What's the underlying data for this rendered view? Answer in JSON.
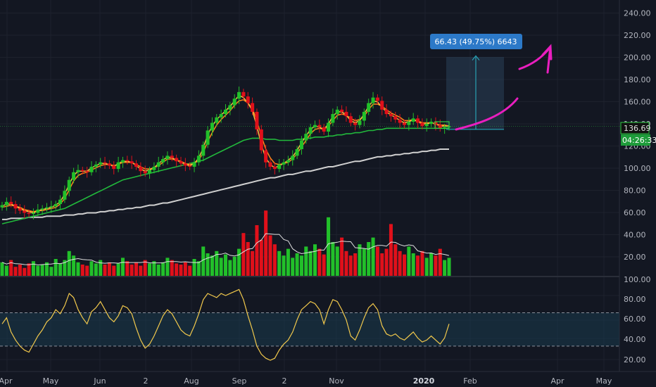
{
  "colors": {
    "background": "#131722",
    "grid": "#1e222d",
    "candle_up": "#26a69a",
    "candle_down": "#ef5350",
    "volume_up": "#22c02a",
    "volume_down": "#e0101a",
    "ema_fast": "#f6c244",
    "ema_slow": "#ff8a1a",
    "sma_mid": "#22b93c",
    "sma_long": "#d0d0d0",
    "rsi_line": "#f2c94c",
    "rsi_band": "#1a3a4d",
    "measure_box": "#2a3f58",
    "measure_label": "#2c79c8",
    "arrow": "#e91ebf",
    "price_tag": "#1e9b3a"
  },
  "chart_data": {
    "type": "candlestick",
    "price_axis": {
      "ticks": [
        "240.00",
        "220.00",
        "200.00",
        "180.00",
        "160.00",
        "140.00",
        "120.00",
        "100.00",
        "80.00",
        "60.00",
        "40.00",
        "20.00"
      ],
      "ylim": [
        0,
        240
      ]
    },
    "rsi_axis": {
      "ticks": [
        "100.00",
        "80.00",
        "60.00",
        "40.00",
        "20.00"
      ],
      "ylim": [
        14,
        100
      ],
      "band": [
        34,
        67
      ]
    },
    "time_axis": [
      "Apr",
      "May",
      "Jun",
      "2",
      "Aug",
      "Sep",
      "2",
      "Nov",
      "2020",
      "Feb",
      "Apr",
      "May"
    ],
    "current_price_label": "136.69",
    "countdown_label": "04:26:33",
    "measure_label": "66.43 (49.75%) 6643",
    "close": [
      65,
      68,
      66,
      62,
      60,
      58,
      57,
      58,
      61,
      62,
      63,
      64,
      66,
      70,
      78,
      88,
      95,
      97,
      96,
      95,
      100,
      102,
      104,
      103,
      101,
      98,
      104,
      106,
      105,
      103,
      100,
      96,
      94,
      97,
      100,
      104,
      107,
      110,
      108,
      105,
      103,
      101,
      100,
      104,
      110,
      120,
      133,
      140,
      145,
      148,
      152,
      156,
      162,
      168,
      164,
      158,
      150,
      134,
      115,
      104,
      100,
      98,
      102,
      104,
      106,
      110,
      116,
      124,
      130,
      136,
      138,
      136,
      132,
      140,
      148,
      152,
      150,
      146,
      140,
      138,
      142,
      150,
      158,
      163,
      160,
      152,
      148,
      146,
      143,
      140,
      138,
      141,
      144,
      140,
      137,
      139,
      141,
      138,
      135,
      136,
      137
    ],
    "ema_fast": [
      64,
      66,
      66,
      64,
      62,
      60,
      59,
      58,
      60,
      61,
      62,
      63,
      65,
      68,
      75,
      84,
      92,
      96,
      96,
      96,
      99,
      101,
      103,
      103,
      102,
      100,
      103,
      105,
      105,
      104,
      101,
      98,
      96,
      97,
      99,
      103,
      106,
      109,
      108,
      106,
      104,
      102,
      101,
      103,
      108,
      117,
      129,
      137,
      143,
      147,
      151,
      155,
      160,
      165,
      163,
      158,
      151,
      137,
      120,
      108,
      102,
      99,
      101,
      103,
      106,
      109,
      115,
      122,
      128,
      134,
      137,
      136,
      134,
      139,
      146,
      150,
      150,
      147,
      142,
      140,
      142,
      148,
      155,
      160,
      159,
      154,
      150,
      147,
      145,
      142,
      140,
      141,
      143,
      141,
      139,
      139,
      140,
      139,
      137,
      137,
      137
    ],
    "ema_slow": [
      63,
      64,
      65,
      64,
      63,
      61,
      60,
      59,
      60,
      60,
      61,
      62,
      63,
      66,
      71,
      79,
      87,
      92,
      94,
      95,
      97,
      99,
      101,
      102,
      102,
      101,
      102,
      104,
      104,
      104,
      102,
      100,
      98,
      98,
      99,
      101,
      104,
      107,
      107,
      106,
      105,
      103,
      102,
      103,
      106,
      113,
      123,
      131,
      138,
      143,
      147,
      151,
      156,
      160,
      161,
      158,
      153,
      142,
      128,
      116,
      108,
      103,
      102,
      103,
      104,
      107,
      112,
      118,
      124,
      130,
      134,
      135,
      134,
      137,
      142,
      147,
      148,
      147,
      144,
      142,
      143,
      146,
      152,
      157,
      157,
      155,
      152,
      149,
      147,
      145,
      142,
      142,
      143,
      142,
      140,
      140,
      140,
      139,
      138,
      138,
      137
    ],
    "sma_mid": [
      48,
      49,
      50,
      51,
      52,
      53,
      54,
      55,
      56,
      57,
      58,
      59,
      60,
      61,
      62,
      64,
      66,
      68,
      70,
      72,
      74,
      76,
      78,
      80,
      82,
      84,
      86,
      88,
      89,
      90,
      91,
      92,
      93,
      94,
      95,
      96,
      97,
      98,
      99,
      100,
      101,
      102,
      103,
      104,
      105,
      106,
      108,
      110,
      112,
      114,
      116,
      118,
      120,
      122,
      124,
      125,
      126,
      126,
      126,
      125,
      125,
      125,
      124,
      124,
      124,
      124,
      125,
      125,
      126,
      126,
      127,
      127,
      127,
      128,
      128,
      129,
      129,
      130,
      130,
      131,
      131,
      132,
      133,
      133,
      134,
      134,
      135,
      135,
      135,
      135,
      135,
      135,
      135,
      135,
      135,
      135,
      135,
      135,
      135,
      135,
      135
    ],
    "sma_long": [
      52,
      52,
      53,
      53,
      53,
      53,
      54,
      54,
      54,
      54,
      55,
      55,
      55,
      55,
      56,
      56,
      56,
      57,
      57,
      58,
      58,
      58,
      59,
      59,
      60,
      60,
      61,
      61,
      62,
      62,
      63,
      63,
      64,
      65,
      65,
      66,
      67,
      67,
      68,
      69,
      70,
      71,
      72,
      73,
      74,
      75,
      76,
      77,
      78,
      79,
      80,
      81,
      82,
      83,
      84,
      85,
      86,
      87,
      88,
      89,
      90,
      90,
      91,
      92,
      93,
      93,
      94,
      95,
      96,
      96,
      97,
      98,
      99,
      100,
      100,
      101,
      102,
      103,
      104,
      105,
      105,
      106,
      107,
      108,
      109,
      109,
      110,
      110,
      111,
      111,
      112,
      112,
      113,
      113,
      114,
      114,
      115,
      115,
      116,
      116,
      116
    ],
    "volume": [
      12,
      9,
      14,
      8,
      10,
      7,
      11,
      13,
      9,
      10,
      12,
      8,
      15,
      11,
      14,
      22,
      18,
      12,
      10,
      9,
      13,
      11,
      14,
      10,
      12,
      9,
      11,
      16,
      13,
      10,
      12,
      9,
      14,
      11,
      13,
      10,
      12,
      16,
      14,
      11,
      10,
      12,
      9,
      15,
      13,
      26,
      20,
      18,
      22,
      16,
      19,
      14,
      17,
      24,
      38,
      30,
      22,
      45,
      32,
      58,
      36,
      28,
      22,
      18,
      24,
      16,
      20,
      18,
      26,
      22,
      28,
      24,
      19,
      52,
      30,
      26,
      34,
      22,
      18,
      20,
      28,
      24,
      30,
      34,
      26,
      20,
      24,
      46,
      28,
      22,
      19,
      26,
      20,
      18,
      22,
      16,
      20,
      18,
      24,
      14,
      16
    ],
    "rsi": [
      56,
      62,
      48,
      40,
      34,
      30,
      28,
      36,
      44,
      50,
      58,
      62,
      70,
      66,
      74,
      86,
      82,
      70,
      62,
      56,
      68,
      72,
      78,
      70,
      62,
      58,
      64,
      74,
      72,
      66,
      52,
      40,
      32,
      36,
      44,
      54,
      64,
      70,
      66,
      58,
      50,
      46,
      44,
      54,
      66,
      80,
      86,
      84,
      82,
      86,
      84,
      86,
      88,
      90,
      80,
      64,
      50,
      34,
      26,
      22,
      20,
      22,
      30,
      36,
      40,
      48,
      60,
      70,
      74,
      78,
      76,
      70,
      56,
      70,
      80,
      78,
      70,
      60,
      44,
      40,
      50,
      62,
      72,
      76,
      70,
      54,
      46,
      44,
      46,
      42,
      40,
      44,
      48,
      42,
      38,
      40,
      44,
      40,
      36,
      42,
      56
    ]
  }
}
